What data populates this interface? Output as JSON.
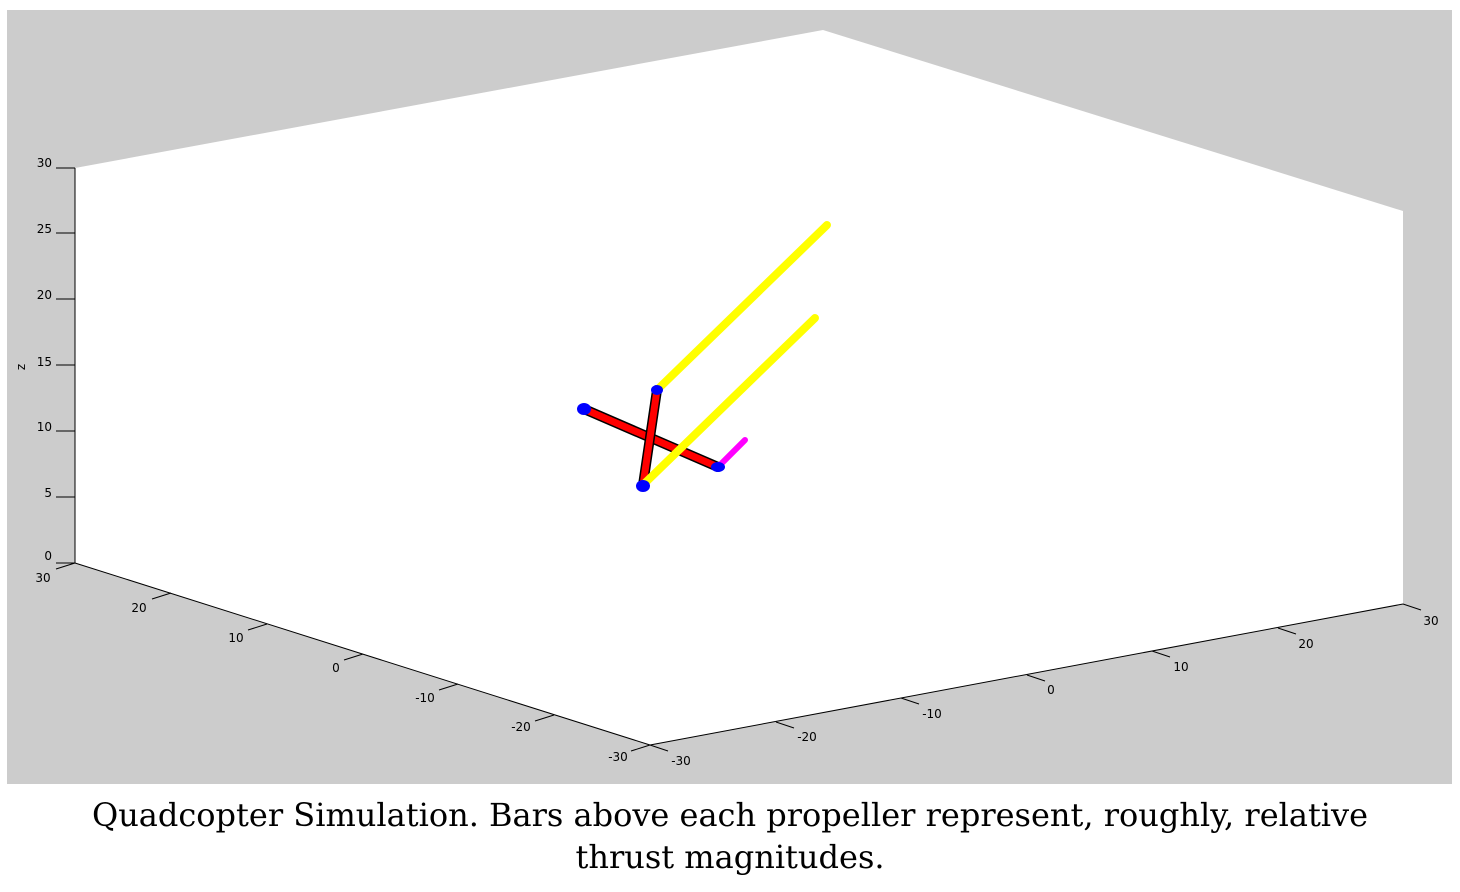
{
  "figure": {
    "background_color": "#cccccc",
    "plot_color": "#ffffff",
    "axis_label_z": "z",
    "z_ticks": [
      "0",
      "5",
      "10",
      "15",
      "20",
      "25",
      "30"
    ],
    "left_axis_ticks": [
      "30",
      "20",
      "10",
      "0",
      "-10",
      "-20",
      "-30"
    ],
    "right_axis_ticks": [
      "-30",
      "-20",
      "-10",
      "0",
      "10",
      "20",
      "30"
    ],
    "arm_color": "#ff0000",
    "motor_color": "#0000ff",
    "thrust_bar_color": "#ffff00",
    "heading_marker_color": "#ff00ff"
  },
  "caption": "Quadcopter Simulation. Bars above each propeller represent, roughly, relative thrust magnitudes."
}
